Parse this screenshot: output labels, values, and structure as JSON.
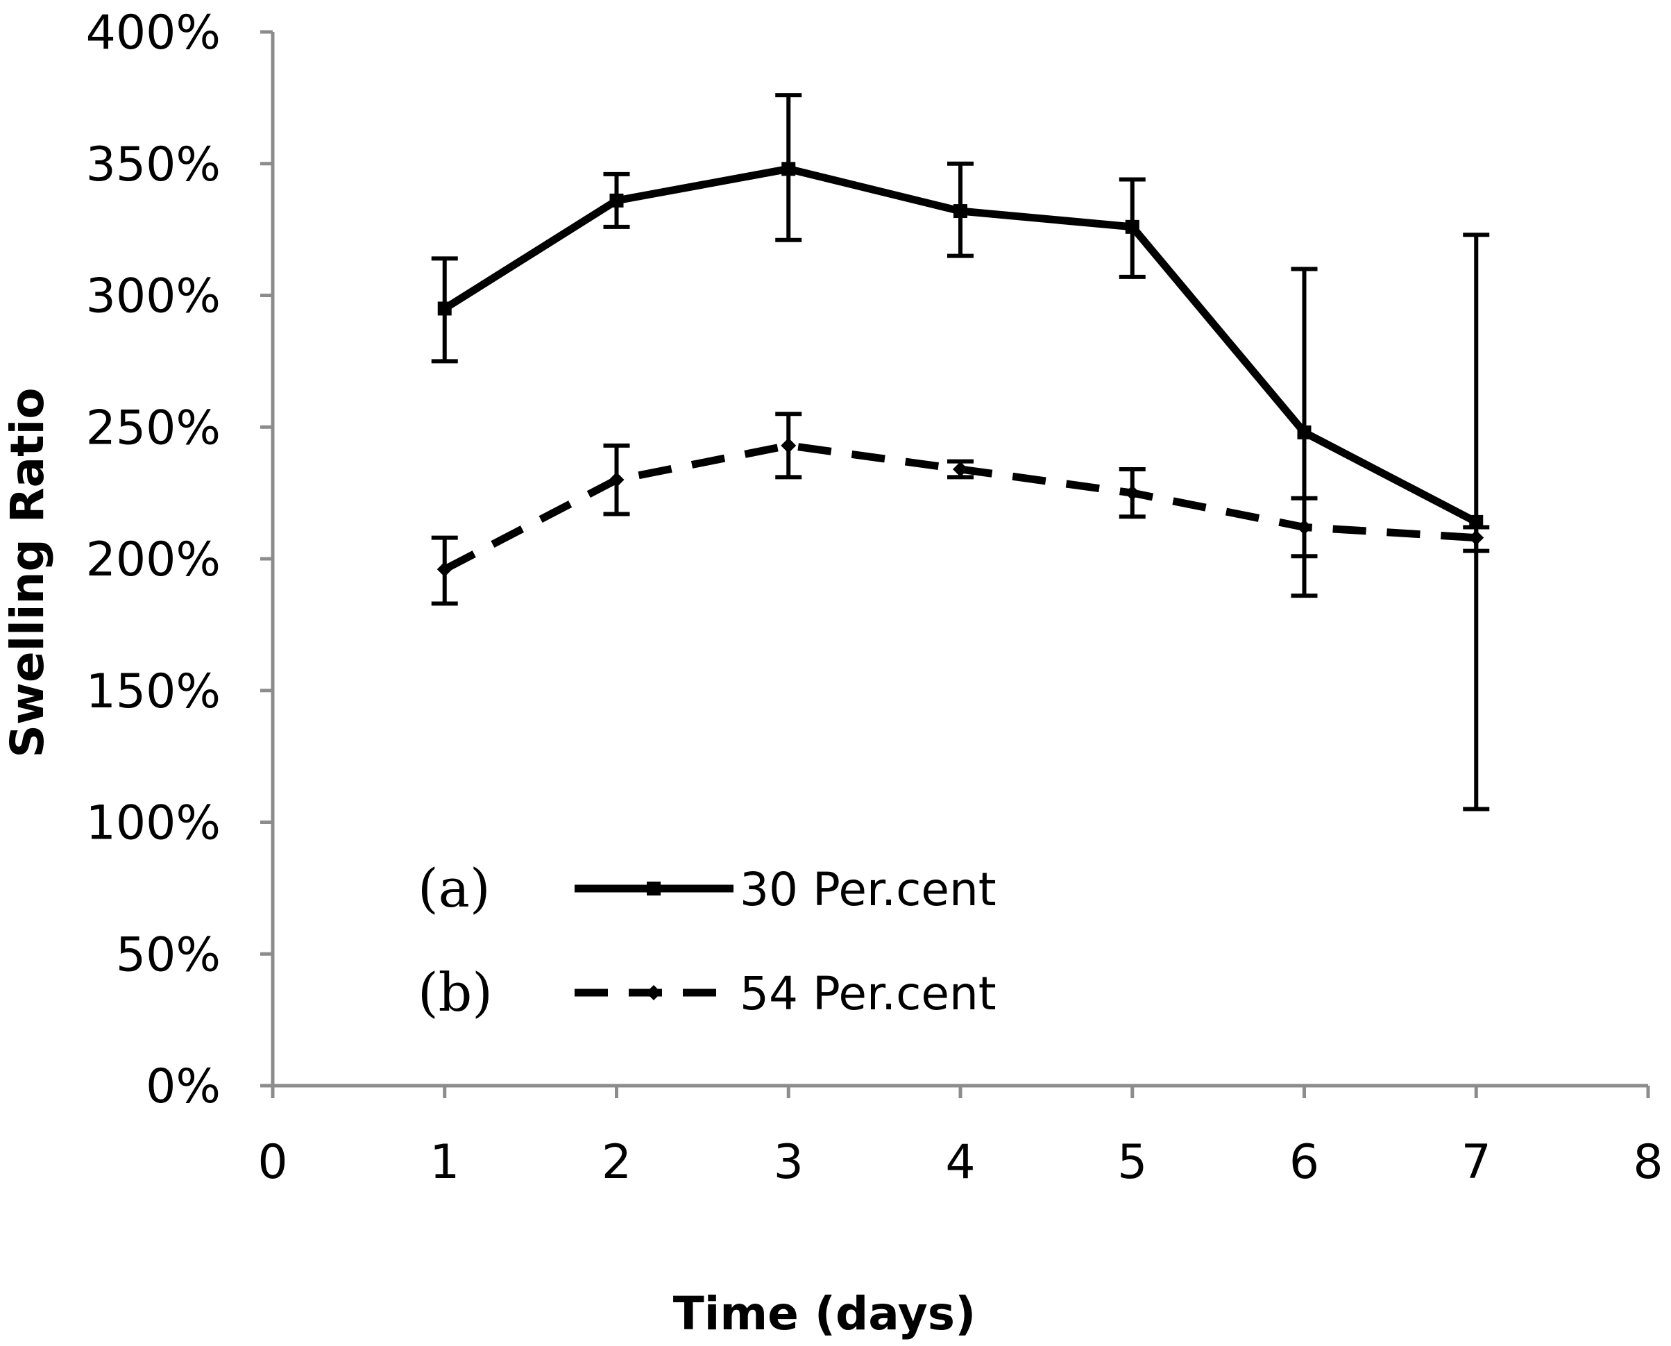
{
  "chart_data": {
    "type": "line",
    "title": "",
    "xlabel": "Time (days)",
    "ylabel": "Swelling Ratio",
    "xlim": [
      0,
      8
    ],
    "ylim": [
      0,
      4
    ],
    "x_ticks": [
      0,
      1,
      2,
      3,
      4,
      5,
      6,
      7,
      8
    ],
    "y_ticks": [
      0,
      0.5,
      1,
      1.5,
      2,
      2.5,
      3,
      3.5,
      4
    ],
    "x_tick_labels": [
      "0",
      "1",
      "2",
      "3",
      "4",
      "5",
      "6",
      "7",
      "8"
    ],
    "y_tick_labels": [
      "0%",
      "50%",
      "100%",
      "150%",
      "200%",
      "250%",
      "300%",
      "350%",
      "400%"
    ],
    "grid": false,
    "legend_position": "bottom-left inside",
    "series": [
      {
        "name": "30 Per.cent",
        "tag": "(a)",
        "style": "solid",
        "color": "#000000",
        "x": [
          1,
          2,
          3,
          4,
          5,
          6,
          7
        ],
        "values": [
          2.95,
          3.36,
          3.48,
          3.32,
          3.26,
          2.48,
          2.14
        ],
        "error_low": [
          2.75,
          3.26,
          3.21,
          3.15,
          3.07,
          1.86,
          1.05
        ],
        "error_high": [
          3.14,
          3.46,
          3.76,
          3.5,
          3.44,
          3.1,
          3.23
        ]
      },
      {
        "name": "54 Per.cent",
        "tag": "(b)",
        "style": "dashed",
        "color": "#000000",
        "x": [
          1,
          2,
          3,
          4,
          5,
          6,
          7
        ],
        "values": [
          1.96,
          2.3,
          2.43,
          2.34,
          2.25,
          2.12,
          2.08
        ],
        "error_low": [
          1.83,
          2.17,
          2.31,
          2.31,
          2.16,
          2.01,
          2.03
        ],
        "error_high": [
          2.08,
          2.43,
          2.55,
          2.37,
          2.34,
          2.23,
          2.12
        ]
      }
    ]
  }
}
